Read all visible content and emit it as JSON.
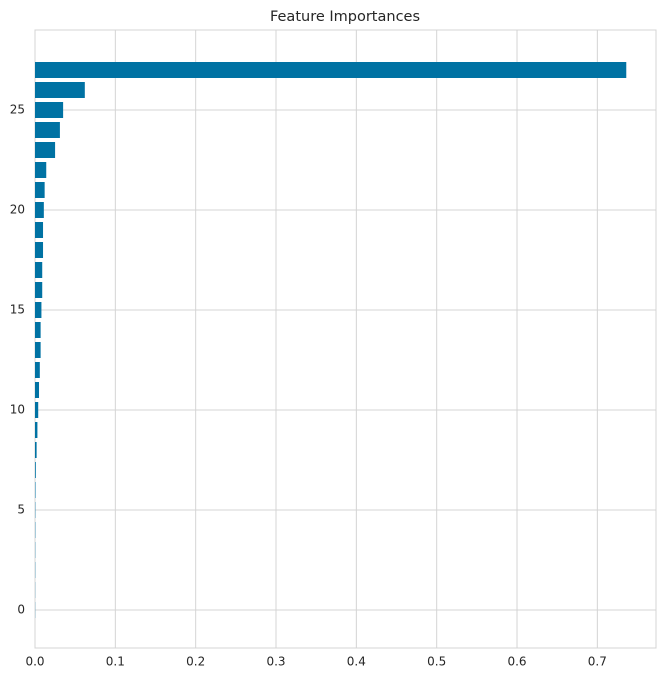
{
  "chart_data": {
    "type": "barh",
    "title": "Feature Importances",
    "y": [
      0,
      1,
      2,
      3,
      4,
      5,
      6,
      7,
      8,
      9,
      10,
      11,
      12,
      13,
      14,
      15,
      16,
      17,
      18,
      19,
      20,
      21,
      22,
      23,
      24,
      25,
      26,
      27
    ],
    "values": [
      0.0002,
      0.0002,
      0.0003,
      0.0003,
      0.0004,
      0.0004,
      0.0006,
      0.001,
      0.002,
      0.003,
      0.004,
      0.005,
      0.006,
      0.007,
      0.007,
      0.008,
      0.009,
      0.009,
      0.01,
      0.01,
      0.011,
      0.012,
      0.014,
      0.025,
      0.031,
      0.035,
      0.062,
      0.736
    ],
    "color": "#0072a3",
    "xlim": [
      0,
      0.773
    ],
    "xticks": [
      0.0,
      0.1,
      0.2,
      0.3,
      0.4,
      0.5,
      0.6,
      0.7
    ],
    "ylim": [
      -1.9,
      29
    ],
    "yticks": [
      0,
      5,
      10,
      15,
      20,
      25
    ],
    "grid": true
  }
}
